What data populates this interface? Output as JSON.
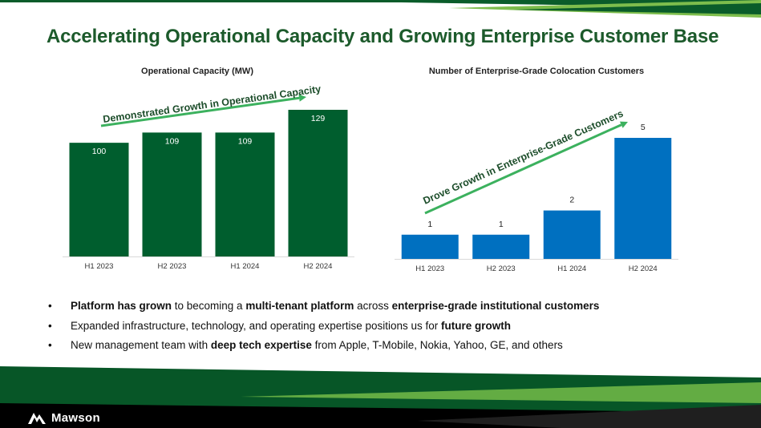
{
  "slide": {
    "title": "Accelerating Operational Capacity and Growing Enterprise Customer Base",
    "brand": "Mawson",
    "colors": {
      "brand_green": "#005e2e",
      "title_green": "#1c5a2b",
      "blue": "#0070c0",
      "arrow_green": "#3cb15e"
    }
  },
  "chart_data": [
    {
      "type": "bar",
      "title": "Operational Capacity (MW)",
      "categories": [
        "H1 2023",
        "H2 2023",
        "H1 2024",
        "H2 2024"
      ],
      "values": [
        100,
        109,
        109,
        129
      ],
      "ylim": [
        0,
        129
      ],
      "color": "#005e2e",
      "annotation": "Demonstrated Growth in Operational Capacity",
      "xlabel": "",
      "ylabel": ""
    },
    {
      "type": "bar",
      "title": "Number of Enterprise-Grade Colocation Customers",
      "categories": [
        "H1 2023",
        "H2 2023",
        "H1 2024",
        "H2 2024"
      ],
      "values": [
        1,
        1,
        2,
        5
      ],
      "ylim": [
        0,
        5
      ],
      "color": "#0070c0",
      "annotation": "Drove Growth in Enterprise-Grade Customers",
      "xlabel": "",
      "ylabel": ""
    }
  ],
  "bullets": [
    {
      "marker": "•",
      "segments": [
        {
          "text": "Platform has grown",
          "bold": true
        },
        {
          "text": " to becoming a ",
          "bold": false
        },
        {
          "text": "multi-tenant platform",
          "bold": true
        },
        {
          "text": " across ",
          "bold": false
        },
        {
          "text": "enterprise-grade institutional customers",
          "bold": true
        }
      ]
    },
    {
      "marker": "•",
      "segments": [
        {
          "text": "Expanded infrastructure, technology, and operating expertise positions us for ",
          "bold": false
        },
        {
          "text": "future growth",
          "bold": true
        }
      ]
    },
    {
      "marker": "•",
      "segments": [
        {
          "text": "New management team with ",
          "bold": false
        },
        {
          "text": "deep tech expertise",
          "bold": true
        },
        {
          "text": " from Apple, T-Mobile, Nokia, Yahoo, GE, and others",
          "bold": false
        }
      ]
    }
  ]
}
